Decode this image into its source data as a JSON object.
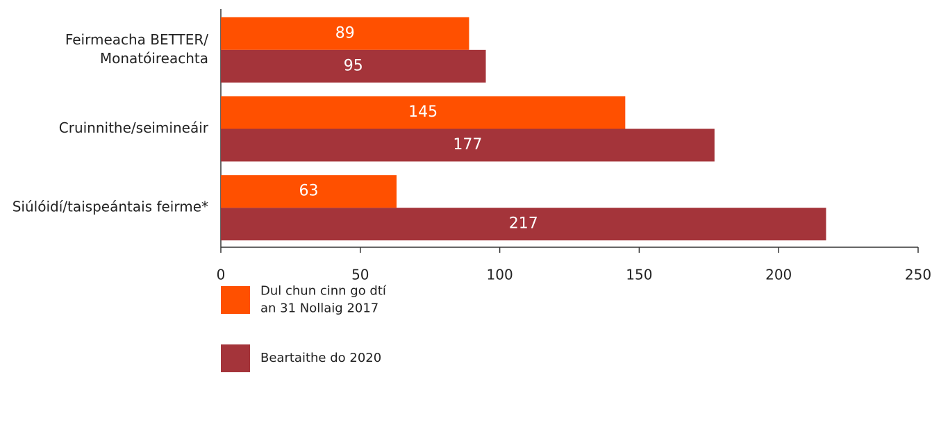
{
  "chart_data": {
    "type": "hbar",
    "categories": [
      [
        "Feirmeacha BETTER/",
        "Monatóireachta"
      ],
      [
        "Cruinnithe/seimineáir"
      ],
      [
        "Siúlóidí/taispeántais feirme*"
      ]
    ],
    "series": [
      {
        "name": [
          "Dul chun cinn go dtí",
          "an 31 Nollaig 2017"
        ],
        "color": "#ff5000",
        "values": [
          89,
          145,
          63
        ]
      },
      {
        "name": [
          "Beartaithe do 2020"
        ],
        "color": "#a4343a",
        "values": [
          95,
          177,
          217
        ]
      }
    ],
    "xlim": [
      0,
      250
    ],
    "xticks": [
      0,
      50,
      100,
      150,
      200,
      250
    ],
    "grid": false
  }
}
